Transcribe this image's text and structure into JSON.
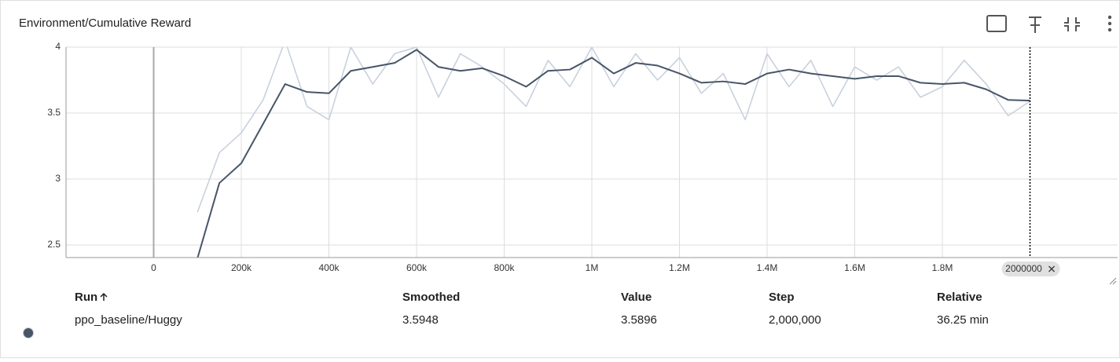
{
  "chart_data": {
    "type": "line",
    "title": "Environment/Cumulative Reward",
    "x": [
      100000,
      150000,
      200000,
      250000,
      300000,
      350000,
      400000,
      450000,
      500000,
      550000,
      600000,
      650000,
      700000,
      750000,
      800000,
      850000,
      900000,
      950000,
      1000000,
      1050000,
      1100000,
      1150000,
      1200000,
      1250000,
      1300000,
      1350000,
      1400000,
      1450000,
      1500000,
      1550000,
      1600000,
      1650000,
      1700000,
      1750000,
      1800000,
      1850000,
      1900000,
      1950000,
      2000000
    ],
    "series": [
      {
        "color": "#c9d1dd",
        "values": [
          2.75,
          3.2,
          3.35,
          3.6,
          4.05,
          3.55,
          3.45,
          4.0,
          3.72,
          3.95,
          4.0,
          3.62,
          3.95,
          3.85,
          3.72,
          3.55,
          3.9,
          3.7,
          4.0,
          3.7,
          3.95,
          3.75,
          3.92,
          3.65,
          3.8,
          3.45,
          3.95,
          3.7,
          3.9,
          3.55,
          3.85,
          3.75,
          3.85,
          3.62,
          3.7,
          3.9,
          3.72,
          3.48,
          3.5896
        ]
      },
      {
        "color": "#475569",
        "values": [
          2.4,
          2.97,
          3.12,
          3.42,
          3.72,
          3.66,
          3.65,
          3.82,
          3.85,
          3.88,
          3.98,
          3.85,
          3.82,
          3.84,
          3.78,
          3.7,
          3.82,
          3.83,
          3.92,
          3.8,
          3.88,
          3.86,
          3.8,
          3.73,
          3.74,
          3.72,
          3.8,
          3.83,
          3.8,
          3.78,
          3.76,
          3.78,
          3.78,
          3.73,
          3.72,
          3.73,
          3.68,
          3.6,
          3.5948
        ]
      }
    ],
    "xlim": [
      -200000,
      2200000
    ],
    "xticks": [
      0,
      {
        "value": 200000,
        "label": "200k"
      },
      {
        "value": 400000,
        "label": "400k"
      },
      {
        "value": 600000,
        "label": "600k"
      },
      {
        "value": 800000,
        "label": "800k"
      },
      {
        "value": 1000000,
        "label": "1M"
      },
      {
        "value": 1200000,
        "label": "1.2M"
      },
      {
        "value": 1400000,
        "label": "1.4M"
      },
      {
        "value": 1600000,
        "label": "1.6M"
      },
      {
        "value": 1800000,
        "label": "1.8M"
      }
    ],
    "ylim": [
      2.405,
      4.0
    ],
    "yticks": [
      2.5,
      3,
      3.5,
      4
    ],
    "grid": true,
    "cursor_step": 2000000
  },
  "table": {
    "columns": [
      "Run",
      "Smoothed",
      "Value",
      "Step",
      "Relative"
    ],
    "rows": [
      [
        "ppo_baseline/Huggy",
        "3.5948",
        "3.5896",
        "2,000,000",
        "36.25 min"
      ]
    ],
    "run_color": "#475569"
  }
}
